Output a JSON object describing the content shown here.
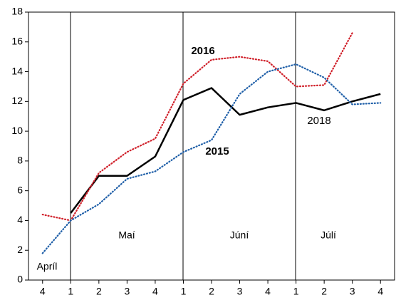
{
  "chart_data": {
    "type": "line",
    "categories": [
      "4",
      "1",
      "2",
      "3",
      "4",
      "1",
      "2",
      "3",
      "4",
      "1",
      "2",
      "3",
      "4"
    ],
    "series": [
      {
        "name": "2018",
        "color": "#000000",
        "style": "solid",
        "values": [
          null,
          4.5,
          7.0,
          7.0,
          8.3,
          12.1,
          12.9,
          11.1,
          11.6,
          11.9,
          11.4,
          12.0,
          12.5
        ]
      },
      {
        "name": "2016",
        "color": "#d0202a",
        "style": "dotted",
        "values": [
          4.4,
          4.0,
          7.2,
          8.6,
          9.5,
          13.2,
          14.8,
          15.0,
          14.7,
          13.0,
          13.1,
          16.6,
          null
        ]
      },
      {
        "name": "2015",
        "color": "#1f5fa8",
        "style": "dotted",
        "values": [
          1.8,
          4.0,
          5.1,
          6.8,
          7.3,
          8.6,
          9.4,
          12.5,
          14.0,
          14.5,
          13.6,
          11.8,
          11.9
        ]
      }
    ],
    "annotations": [
      "Apríl",
      "Maí",
      "Júní",
      "Júlí"
    ],
    "ylim": [
      0,
      18
    ],
    "yticks": [
      0,
      2,
      4,
      6,
      8,
      10,
      12,
      14,
      16,
      18
    ]
  }
}
